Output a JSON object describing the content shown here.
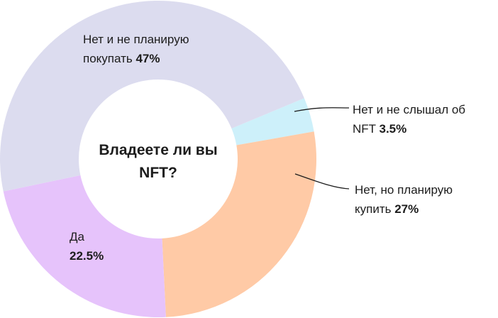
{
  "chart_data": {
    "type": "donut",
    "title": "Владеете ли вы NFT?",
    "categories": [
      "Нет и не слышал об NFT",
      "Нет, но планирую купить",
      "Да",
      "Нет и не планирую покупать"
    ],
    "values": [
      3.5,
      27,
      22.5,
      47
    ],
    "value_labels": [
      "3.5%",
      "27%",
      "22.5%",
      "47%"
    ],
    "colors": [
      "#cdf0fa",
      "#ffcaa6",
      "#e6c3fb",
      "#dcdcef"
    ]
  }
}
